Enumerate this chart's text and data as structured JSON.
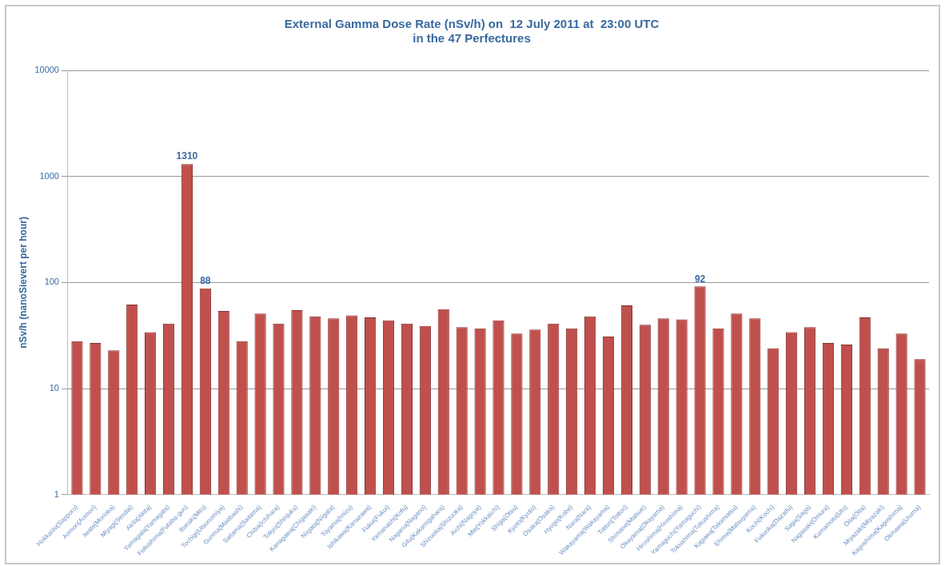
{
  "chart_data": {
    "type": "bar",
    "title": "External Gamma Dose Rate (nSv/h) on  12 July 2011 at  23:00 UTC\nin the 47 Perfectures",
    "ylabel": "nSv/h (nanoSievert per hour)",
    "categories": [
      "Hokkaido(Sapporo)",
      "Aomori(Aomori)",
      "Iwate(Morioka)",
      "Miyagi(Sendai)",
      "Akita(Akita)",
      "Yamagata(Yamagata)",
      "Fukushima(Futaba-gun)",
      "Ibaraki(Mito)",
      "Tochigi(Utsunomiya)",
      "Gunma(Maebashi)",
      "Saitama(Saitama)",
      "Chiba(Ichihara)",
      "Tokyo(Shinjuku)",
      "Kanagawa(Chigasaki)",
      "Niigata(Niigata)",
      "Toyama(Imizu)",
      "Ishikawa(Kanazawa)",
      "Fukui(Fukui)",
      "Yamanashi(Kofu)",
      "Nagano(Nagano)",
      "Gifu(Kakamigahara)",
      "Shizuoka(Shizuoka)",
      "Aichi(Nagoya)",
      "Mie(Yokkaichi)",
      "Shiga(Otsu)",
      "Kyoto(Kyoto)",
      "Osaka(Osaka)",
      "Hyogo(Kobe)",
      "Nara(Nara)",
      "Wakayama(Wakayama)",
      "Tottori(Tottori)",
      "Shimane(Matsue)",
      "Okayama(Okayama)",
      "Hiroshima(Hiroshima)",
      "Yamaguchi(Yamaguchi)",
      "Tokushima(Tokushima)",
      "Kagawa(Takamatsu)",
      "Ehime(Matsuyama)",
      "Kochi(Kochi)",
      "Fukuoka(Dazaifu)",
      "Saga(Saga)",
      "Nagasaki(Omura)",
      "Kumamoto(Uto)",
      "Oita(Oita)",
      "Miyazaki(Miyazaki)",
      "Kagoshima(Kagoshima)",
      "Okinawa(Uruma)"
    ],
    "values": [
      28,
      27,
      23,
      62,
      34,
      41,
      1310,
      88,
      54,
      28,
      51,
      41,
      55,
      48,
      46,
      49,
      47,
      44,
      41,
      39,
      56,
      38,
      37,
      44,
      33,
      36,
      41,
      37,
      48,
      31,
      61,
      40,
      46,
      45,
      92,
      37,
      51,
      46,
      24,
      34,
      38,
      27,
      26,
      47,
      24,
      33,
      19
    ],
    "value_labels": [
      null,
      null,
      null,
      null,
      null,
      null,
      "1310",
      "88",
      null,
      null,
      null,
      null,
      null,
      null,
      null,
      null,
      null,
      null,
      null,
      null,
      null,
      null,
      null,
      null,
      null,
      null,
      null,
      null,
      null,
      null,
      null,
      null,
      null,
      null,
      "92",
      null,
      null,
      null,
      null,
      null,
      null,
      null,
      null,
      null,
      null,
      null,
      null
    ],
    "color": "#c0504d",
    "log": true,
    "ylim": [
      1,
      10000
    ],
    "yticks": [
      1,
      10,
      100,
      1000,
      10000
    ],
    "grid": "y",
    "legend": false
  }
}
